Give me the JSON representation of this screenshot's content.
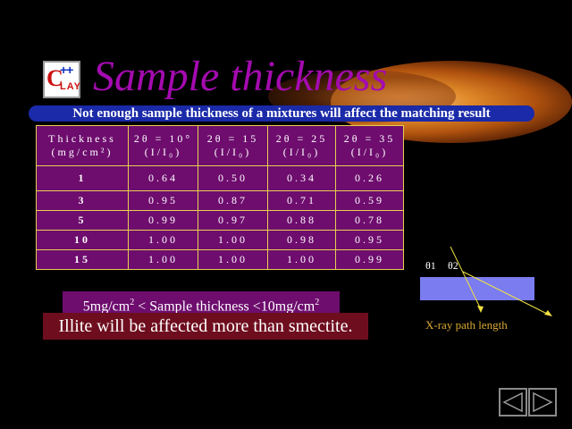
{
  "header": {
    "logo": {
      "letter": "C",
      "plus": "++",
      "text": "LAY"
    },
    "title": "Sample thickness",
    "subtitle": "Not enough sample thickness of a mixtures will affect the matching result"
  },
  "table": {
    "headers": [
      {
        "line1": "Thickness",
        "line2": "(mg/cm²)"
      },
      {
        "line1": "2θ = 10°",
        "line2": "(I/I₀)"
      },
      {
        "line1": "2θ = 15",
        "line2": "(I/I₀)"
      },
      {
        "line1": "2θ = 25",
        "line2": "(I/I₀)"
      },
      {
        "line1": "2θ = 35",
        "line2": "(I/I₀)"
      }
    ],
    "rows": [
      [
        "1",
        "0.64",
        "0.50",
        "0.34",
        "0.26"
      ],
      [
        "3",
        "0.95",
        "0.87",
        "0.71",
        "0.59"
      ],
      [
        "5",
        "0.99",
        "0.97",
        "0.88",
        "0.78"
      ],
      [
        "10",
        "1.00",
        "1.00",
        "0.98",
        "0.95"
      ],
      [
        "15",
        "1.00",
        "1.00",
        "1.00",
        "0.99"
      ]
    ]
  },
  "range": {
    "low": "5mg/cm",
    "exp1": "2",
    "middle": " < Sample thickness  <10mg/cm",
    "exp2": "2"
  },
  "note": "Illite will be affected more than smectite.",
  "diagram": {
    "theta1": "θ1",
    "theta2": "θ2",
    "caption": "X-ray path length"
  },
  "colors": {
    "title": "#a40bb0",
    "cell": "#6e0d6e",
    "border": "#e6d050",
    "subtitle_bg": "#1a2aa8",
    "sample": "#7a7cf0",
    "ray": "#f0e040",
    "caption": "#d9a832"
  },
  "nav": {
    "prev": "previous-slide-icon",
    "next": "next-slide-icon"
  }
}
